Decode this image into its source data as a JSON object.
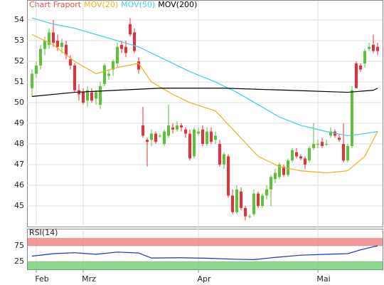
{
  "chart_data": [
    {
      "type": "candlestick",
      "title": "Chart Fraport",
      "title_color": "#e05050",
      "categories": [
        null,
        "Feb",
        null,
        null,
        null,
        null,
        null,
        null,
        null,
        null,
        null,
        null,
        "Mrz",
        null,
        null,
        null,
        null,
        null,
        null,
        null,
        null,
        null,
        null,
        null,
        null,
        null,
        null,
        null,
        null,
        null,
        null,
        null,
        null,
        null,
        null,
        null,
        null,
        null,
        null,
        "Apr",
        null,
        null,
        null,
        null,
        null,
        null,
        null,
        null,
        null,
        null,
        null,
        null,
        null,
        null,
        null,
        null,
        null,
        null,
        null,
        null,
        null,
        null,
        null,
        null,
        null,
        null,
        null,
        "Mai",
        null,
        null,
        null,
        null,
        null,
        null,
        null,
        null,
        null,
        null,
        null,
        null,
        null,
        null
      ],
      "open": [
        50.7,
        51.4,
        51.8,
        52.6,
        52.8,
        53.4,
        53.0,
        52.7,
        52.8,
        52.1,
        51.8,
        50.6,
        50.5,
        50.1,
        50.5,
        50.2,
        49.9,
        50.9,
        51.3,
        51.6,
        51.9,
        52.8,
        52.7,
        53.8,
        53.4,
        52.0,
        48.9,
        48.2,
        48.2,
        48.5,
        48.4,
        48.0,
        48.4,
        48.8,
        48.7,
        48.9,
        48.7,
        48.5,
        47.4,
        48.5,
        48.7,
        48.0,
        48.6,
        48.2,
        48.0,
        47.0,
        47.4,
        45.5,
        44.7,
        45.7,
        44.9,
        44.5,
        44.6,
        45.6,
        45.0,
        45.5,
        45.8,
        46.3,
        46.4,
        46.9,
        46.5,
        47.2,
        47.6,
        47.4,
        47.3,
        47.2,
        47.8,
        48.0,
        48.1,
        48.0,
        48.4,
        48.6,
        48.3,
        48.0,
        47.2,
        47.9,
        51.9,
        51.8,
        51.9,
        52.6,
        52.8,
        52.7
      ],
      "high": [
        51.6,
        52.0,
        52.8,
        53.2,
        53.6,
        54.0,
        53.3,
        53.1,
        53.0,
        52.3,
        51.9,
        50.9,
        50.7,
        50.8,
        50.7,
        50.6,
        51.0,
        51.9,
        51.6,
        52.1,
        52.9,
        53.0,
        53.0,
        54.1,
        53.6,
        52.2,
        49.8,
        48.3,
        48.7,
        48.6,
        48.5,
        48.7,
        49.9,
        49.0,
        49.1,
        49.0,
        48.8,
        48.7,
        48.8,
        48.8,
        48.9,
        48.8,
        48.8,
        48.6,
        48.2,
        47.6,
        47.5,
        45.8,
        46.0,
        45.9,
        45.0,
        44.6,
        45.8,
        45.7,
        45.6,
        46.0,
        46.5,
        46.8,
        47.1,
        47.0,
        47.3,
        47.8,
        47.8,
        47.5,
        47.4,
        47.9,
        49.0,
        48.2,
        48.3,
        48.2,
        48.8,
        48.7,
        48.5,
        49.0,
        48.0,
        50.8,
        52.0,
        51.9,
        52.6,
        52.9,
        53.3,
        52.9
      ],
      "low": [
        50.3,
        51.2,
        51.6,
        52.3,
        52.6,
        52.7,
        52.5,
        52.4,
        52.1,
        51.6,
        50.5,
        50.1,
        49.9,
        49.8,
        50.0,
        49.9,
        49.7,
        50.8,
        51.1,
        51.3,
        51.7,
        52.4,
        52.2,
        53.2,
        52.4,
        51.4,
        48.3,
        46.9,
        47.9,
        48.0,
        48.3,
        47.9,
        48.3,
        48.5,
        48.6,
        48.6,
        48.3,
        47.2,
        47.3,
        48.4,
        47.9,
        47.9,
        48.0,
        48.0,
        46.9,
        46.8,
        45.4,
        44.6,
        44.6,
        44.8,
        44.3,
        44.4,
        44.5,
        44.9,
        44.9,
        45.3,
        45.0,
        46.1,
        46.3,
        46.4,
        46.4,
        47.1,
        47.3,
        47.2,
        46.8,
        47.1,
        47.7,
        47.8,
        47.8,
        47.9,
        48.3,
        48.3,
        48.1,
        47.1,
        47.1,
        47.8,
        50.7,
        51.5,
        51.7,
        52.5,
        52.4,
        52.3
      ],
      "close": [
        51.4,
        51.8,
        52.6,
        53.0,
        53.4,
        52.9,
        52.7,
        52.9,
        52.3,
        51.8,
        50.6,
        50.4,
        50.0,
        50.6,
        50.1,
        50.5,
        50.8,
        51.8,
        51.4,
        52.0,
        52.7,
        52.6,
        52.4,
        53.3,
        52.5,
        51.6,
        48.4,
        48.1,
        48.5,
        48.1,
        48.4,
        48.6,
        48.9,
        48.7,
        48.9,
        48.8,
        48.5,
        47.3,
        48.7,
        48.6,
        48.0,
        48.6,
        48.1,
        48.4,
        47.0,
        47.5,
        45.5,
        44.7,
        45.8,
        44.9,
        44.5,
        44.5,
        45.6,
        45.0,
        45.5,
        45.8,
        46.4,
        46.6,
        47.0,
        46.5,
        47.2,
        47.7,
        47.4,
        47.3,
        47.0,
        47.8,
        48.0,
        48.0,
        47.9,
        48.0,
        48.6,
        48.4,
        48.2,
        47.2,
        47.9,
        50.6,
        50.7,
        51.6,
        52.5,
        52.7,
        52.5,
        52.5
      ],
      "up_color": "#5cc23a",
      "down_color": "#e8303a",
      "series": [
        {
          "name": "MOV(20)",
          "color": "#f0b020",
          "x": [
            0,
            5,
            10,
            15,
            20,
            25,
            28,
            33,
            37,
            43,
            48,
            53,
            58,
            63,
            69,
            74,
            78,
            81
          ],
          "values": [
            53.3,
            52.8,
            52.0,
            51.4,
            51.7,
            51.9,
            51.0,
            50.4,
            50.0,
            49.6,
            48.5,
            47.4,
            46.9,
            46.7,
            46.6,
            46.7,
            47.4,
            48.6
          ]
        },
        {
          "name": "MOV(50)",
          "color": "#40d0e0",
          "x": [
            0,
            5,
            10,
            15,
            20,
            25,
            32,
            37,
            43,
            48,
            53,
            58,
            63,
            69,
            74,
            78,
            81
          ],
          "values": [
            54.1,
            53.8,
            53.6,
            53.3,
            53.0,
            52.7,
            52.0,
            51.5,
            51.0,
            50.5,
            49.9,
            49.3,
            48.9,
            48.6,
            48.4,
            48.5,
            48.6
          ]
        },
        {
          "name": "MOV(200)",
          "color": "#000000",
          "x": [
            0,
            10,
            20,
            30,
            45,
            60,
            74,
            80,
            81
          ],
          "values": [
            50.3,
            50.5,
            50.6,
            50.7,
            50.7,
            50.6,
            50.5,
            50.6,
            50.7
          ]
        }
      ],
      "ylim": [
        44,
        54.9
      ],
      "yticks": [
        45,
        46,
        47,
        48,
        49,
        50,
        51,
        52,
        53,
        54
      ],
      "grid": true
    },
    {
      "type": "line",
      "title": "RSI(14)",
      "ylim": [
        0,
        100
      ],
      "yticks": [
        25,
        75
      ],
      "bands": [
        {
          "from": 75,
          "to": 100,
          "color": "#f08080"
        },
        {
          "from": 0,
          "to": 25,
          "color": "#70d070"
        }
      ],
      "series": [
        {
          "name": null,
          "color": "#2030c0",
          "x": [
            0,
            5,
            10,
            15,
            20,
            25,
            28,
            35,
            42,
            48,
            52,
            57,
            63,
            69,
            74,
            77,
            80,
            81
          ],
          "values": [
            42,
            50,
            53,
            48,
            55,
            52,
            36,
            37,
            35,
            32,
            31,
            38,
            45,
            48,
            50,
            62,
            72,
            75
          ]
        }
      ]
    }
  ]
}
